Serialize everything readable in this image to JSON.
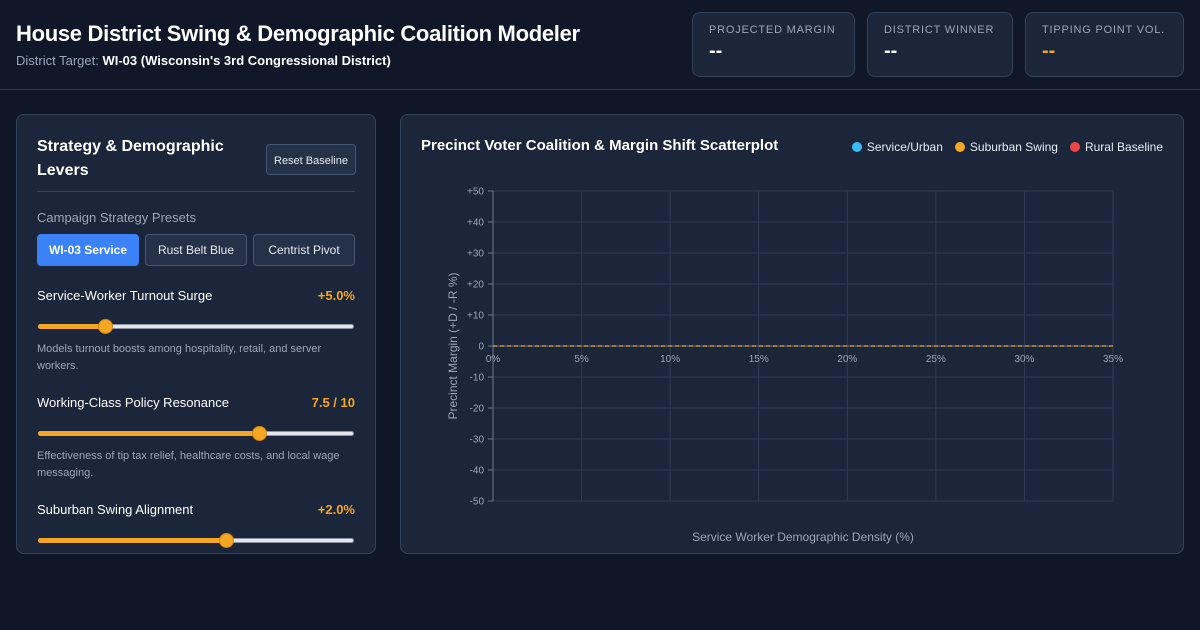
{
  "header": {
    "title": "House District Swing & Demographic Coalition Modeler",
    "target_label": "District Target:",
    "target_value": "WI-03 (Wisconsin's 3rd Congressional District)"
  },
  "stats": [
    {
      "label": "PROJECTED MARGIN",
      "value": "--"
    },
    {
      "label": "DISTRICT WINNER",
      "value": "--"
    },
    {
      "label": "TIPPING POINT VOL.",
      "value": "--",
      "color": "#f5a623"
    }
  ],
  "levers_panel": {
    "title": "Strategy & Demographic Levers",
    "reset_label": "Reset Baseline",
    "presets_label": "Campaign Strategy Presets",
    "presets": [
      "WI-03 Service",
      "Rust Belt Blue",
      "Centrist Pivot"
    ],
    "active_preset": "WI-03 Service",
    "levers": [
      {
        "name": "Service-Worker Turnout Surge",
        "value": "+5.0%",
        "level": 0.2,
        "description": "Models turnout boosts among hospitality, retail, and server workers."
      },
      {
        "name": "Working-Class Policy Resonance",
        "value": "7.5 / 10",
        "level": 0.71,
        "description": "Effectiveness of tip tax relief, healthcare costs, and local wage messaging."
      },
      {
        "name": "Suburban Swing Alignment",
        "value": "+2.0%",
        "level": 0.6,
        "description": ""
      }
    ]
  },
  "chart_panel": {
    "title": "Precinct Voter Coalition & Margin Shift Scatterplot"
  },
  "chart_data": {
    "type": "scatter",
    "title": "Precinct Voter Coalition & Margin Shift Scatterplot",
    "xlabel": "Service Worker Demographic Density (%)",
    "ylabel": "Precinct Margin (+D / -R %)",
    "xlim": [
      0,
      35
    ],
    "ylim": [
      -50,
      50
    ],
    "x_ticks": [
      0,
      5,
      10,
      15,
      20,
      25,
      30,
      35
    ],
    "x_tick_labels": [
      "0%",
      "5%",
      "10%",
      "15%",
      "20%",
      "25%",
      "30%",
      "35%"
    ],
    "y_ticks": [
      50,
      40,
      30,
      20,
      10,
      0,
      -10,
      -20,
      -30,
      -40,
      -50
    ],
    "y_tick_labels": [
      "+50",
      "+40",
      "+30",
      "+20",
      "+10",
      "0",
      "-10",
      "-20",
      "-30",
      "-40",
      "-50"
    ],
    "grid": true,
    "legend_position": "top-right",
    "reference_line_y": 0,
    "reference_line_color": "#f5a623",
    "series": [
      {
        "name": "Service/Urban",
        "color": "#38bdf8",
        "points": []
      },
      {
        "name": "Suburban Swing",
        "color": "#f5a623",
        "points": []
      },
      {
        "name": "Rural Baseline",
        "color": "#ef4444",
        "points": []
      }
    ]
  }
}
